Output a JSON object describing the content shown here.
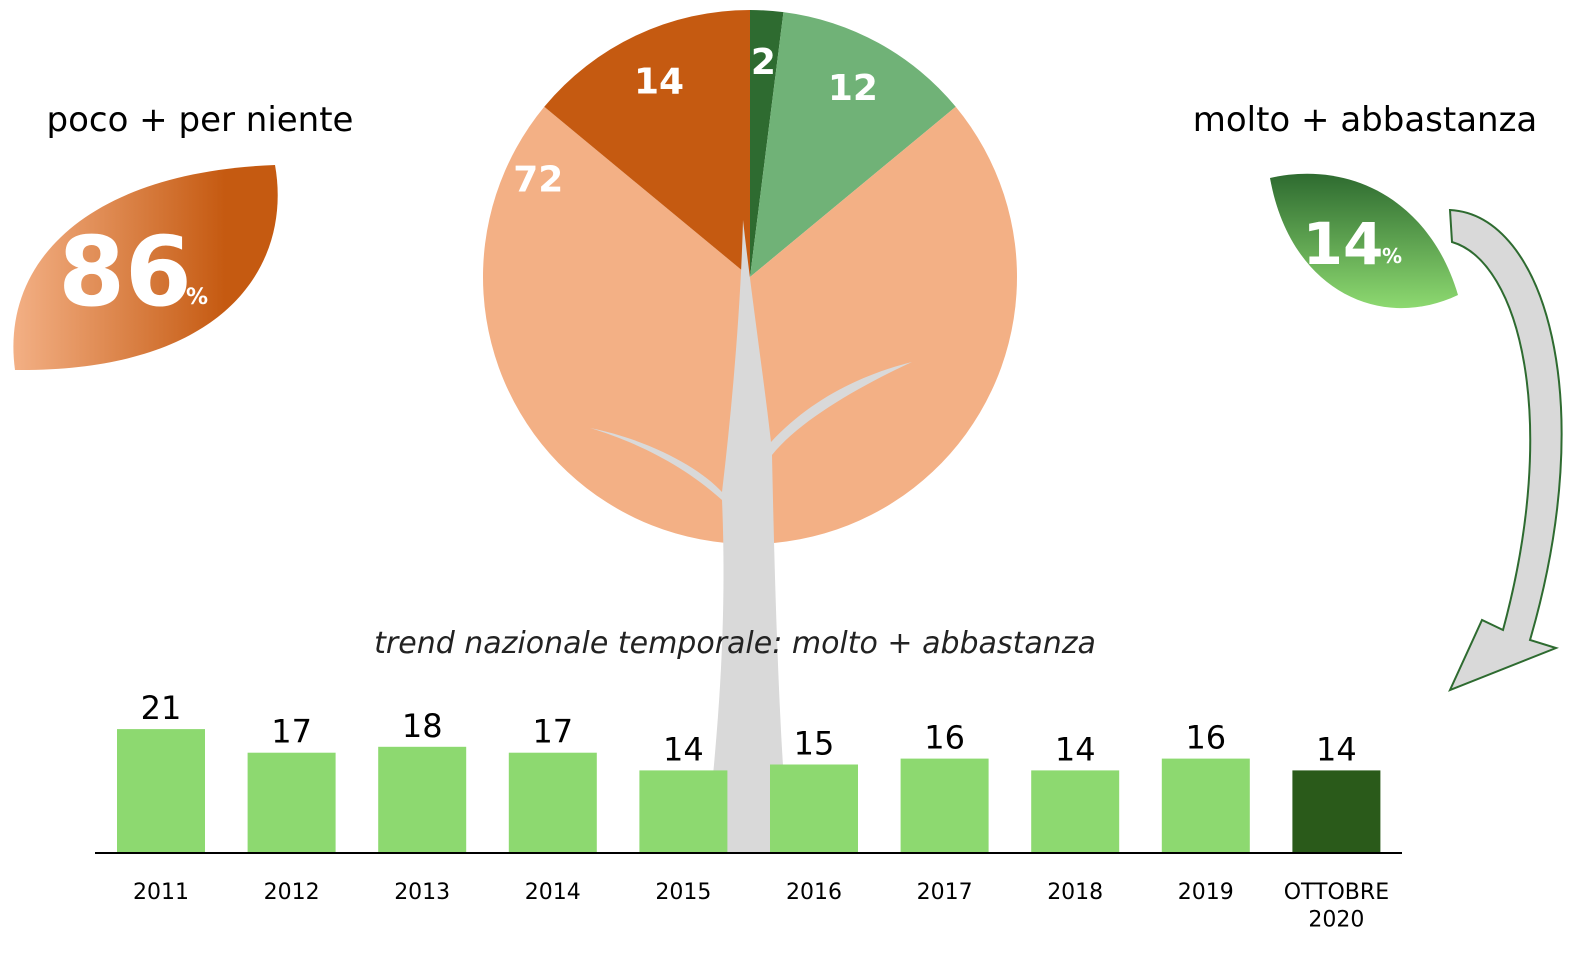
{
  "chart_data": [
    {
      "type": "pie",
      "values": [
        2,
        12,
        72,
        14
      ],
      "colors": [
        "#2e6b30",
        "#70b277",
        "#f3b085",
        "#c55a11"
      ],
      "annotations": [
        {
          "label": "poco + per niente",
          "value": 86,
          "unit": "%"
        },
        {
          "label": "molto + abbastanza",
          "value": 14,
          "unit": "%"
        }
      ]
    },
    {
      "type": "bar",
      "subtitle": "trend nazionale temporale:  molto + abbastanza",
      "categories": [
        "2011",
        "2012",
        "2013",
        "2014",
        "2015",
        "2016",
        "2017",
        "2018",
        "2019",
        "OTTOBRE\n2020"
      ],
      "values": [
        21,
        17,
        18,
        17,
        14,
        15,
        16,
        14,
        16,
        14
      ],
      "colors": [
        "#8dd970",
        "#8dd970",
        "#8dd970",
        "#8dd970",
        "#8dd970",
        "#8dd970",
        "#8dd970",
        "#8dd970",
        "#8dd970",
        "#2a5a1a"
      ]
    }
  ]
}
